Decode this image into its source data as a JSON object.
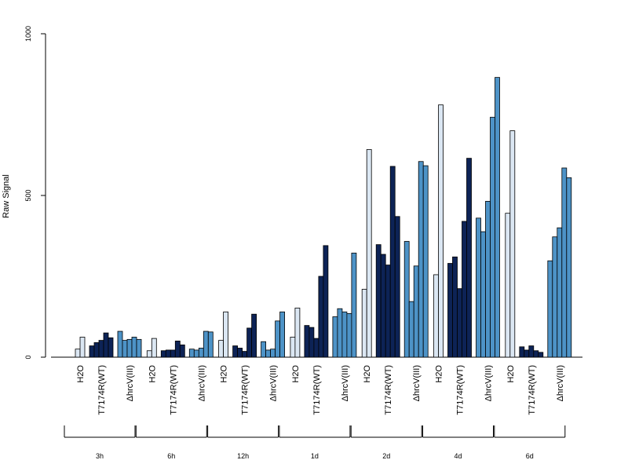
{
  "chart_data": {
    "type": "bar",
    "title": "",
    "xlabel": "",
    "ylabel": "Raw Signal",
    "ylim": [
      0,
      1000
    ],
    "yticks": [
      0,
      500,
      1000
    ],
    "grid": false,
    "legend": "none",
    "group_labels": [
      "H2O",
      "T7174R(WT)",
      "ΔhrcV(III)"
    ],
    "group_colors": [
      "#dbe7f3",
      "#0d2356",
      "#4d93c7"
    ],
    "timepoints": [
      {
        "label": "3h",
        "groups": [
          {
            "label": "H2O",
            "values": [
              25,
              62
            ]
          },
          {
            "label": "T7174R(WT)",
            "values": [
              35,
              45,
              52,
              75,
              60
            ]
          },
          {
            "label": "ΔhrcV(III)",
            "values": [
              80,
              52,
              55,
              62,
              55
            ]
          }
        ]
      },
      {
        "label": "6h",
        "groups": [
          {
            "label": "H2O",
            "values": [
              20,
              58
            ]
          },
          {
            "label": "T7174R(WT)",
            "values": [
              20,
              22,
              22,
              50,
              38
            ]
          },
          {
            "label": "ΔhrcV(III)",
            "values": [
              25,
              22,
              28,
              80,
              78
            ]
          }
        ]
      },
      {
        "label": "12h",
        "groups": [
          {
            "label": "H2O",
            "values": [
              52,
              140
            ]
          },
          {
            "label": "T7174R(WT)",
            "values": [
              35,
              28,
              18,
              90,
              133
            ]
          },
          {
            "label": "ΔhrcV(III)",
            "values": [
              48,
              22,
              25,
              112,
              140
            ]
          }
        ]
      },
      {
        "label": "1d",
        "groups": [
          {
            "label": "H2O",
            "values": [
              62,
              152
            ]
          },
          {
            "label": "T7174R(WT)",
            "values": [
              98,
              92,
              58,
              250,
              345
            ]
          },
          {
            "label": "ΔhrcV(III)",
            "values": [
              125,
              150,
              140,
              135,
              322
            ]
          }
        ]
      },
      {
        "label": "2d",
        "groups": [
          {
            "label": "H2O",
            "values": [
              210,
              642
            ]
          },
          {
            "label": "T7174R(WT)",
            "values": [
              348,
              318,
              285,
              590,
              435
            ]
          },
          {
            "label": "ΔhrcV(III)",
            "values": [
              358,
              172,
              282,
              605,
              592
            ]
          }
        ]
      },
      {
        "label": "4d",
        "groups": [
          {
            "label": "H2O",
            "values": [
              255,
              780
            ]
          },
          {
            "label": "T7174R(WT)",
            "values": [
              290,
              310,
              212,
              420,
              615
            ]
          },
          {
            "label": "ΔhrcV(III)",
            "values": [
              430,
              388,
              482,
              742,
              865
            ]
          }
        ]
      },
      {
        "label": "6d",
        "groups": [
          {
            "label": "H2O",
            "values": [
              445,
              700
            ]
          },
          {
            "label": "T7174R(WT)",
            "values": [
              32,
              22,
              35,
              20,
              15
            ]
          },
          {
            "label": "ΔhrcV(III)",
            "values": [
              298,
              372,
              400,
              585,
              555
            ]
          }
        ]
      }
    ]
  }
}
